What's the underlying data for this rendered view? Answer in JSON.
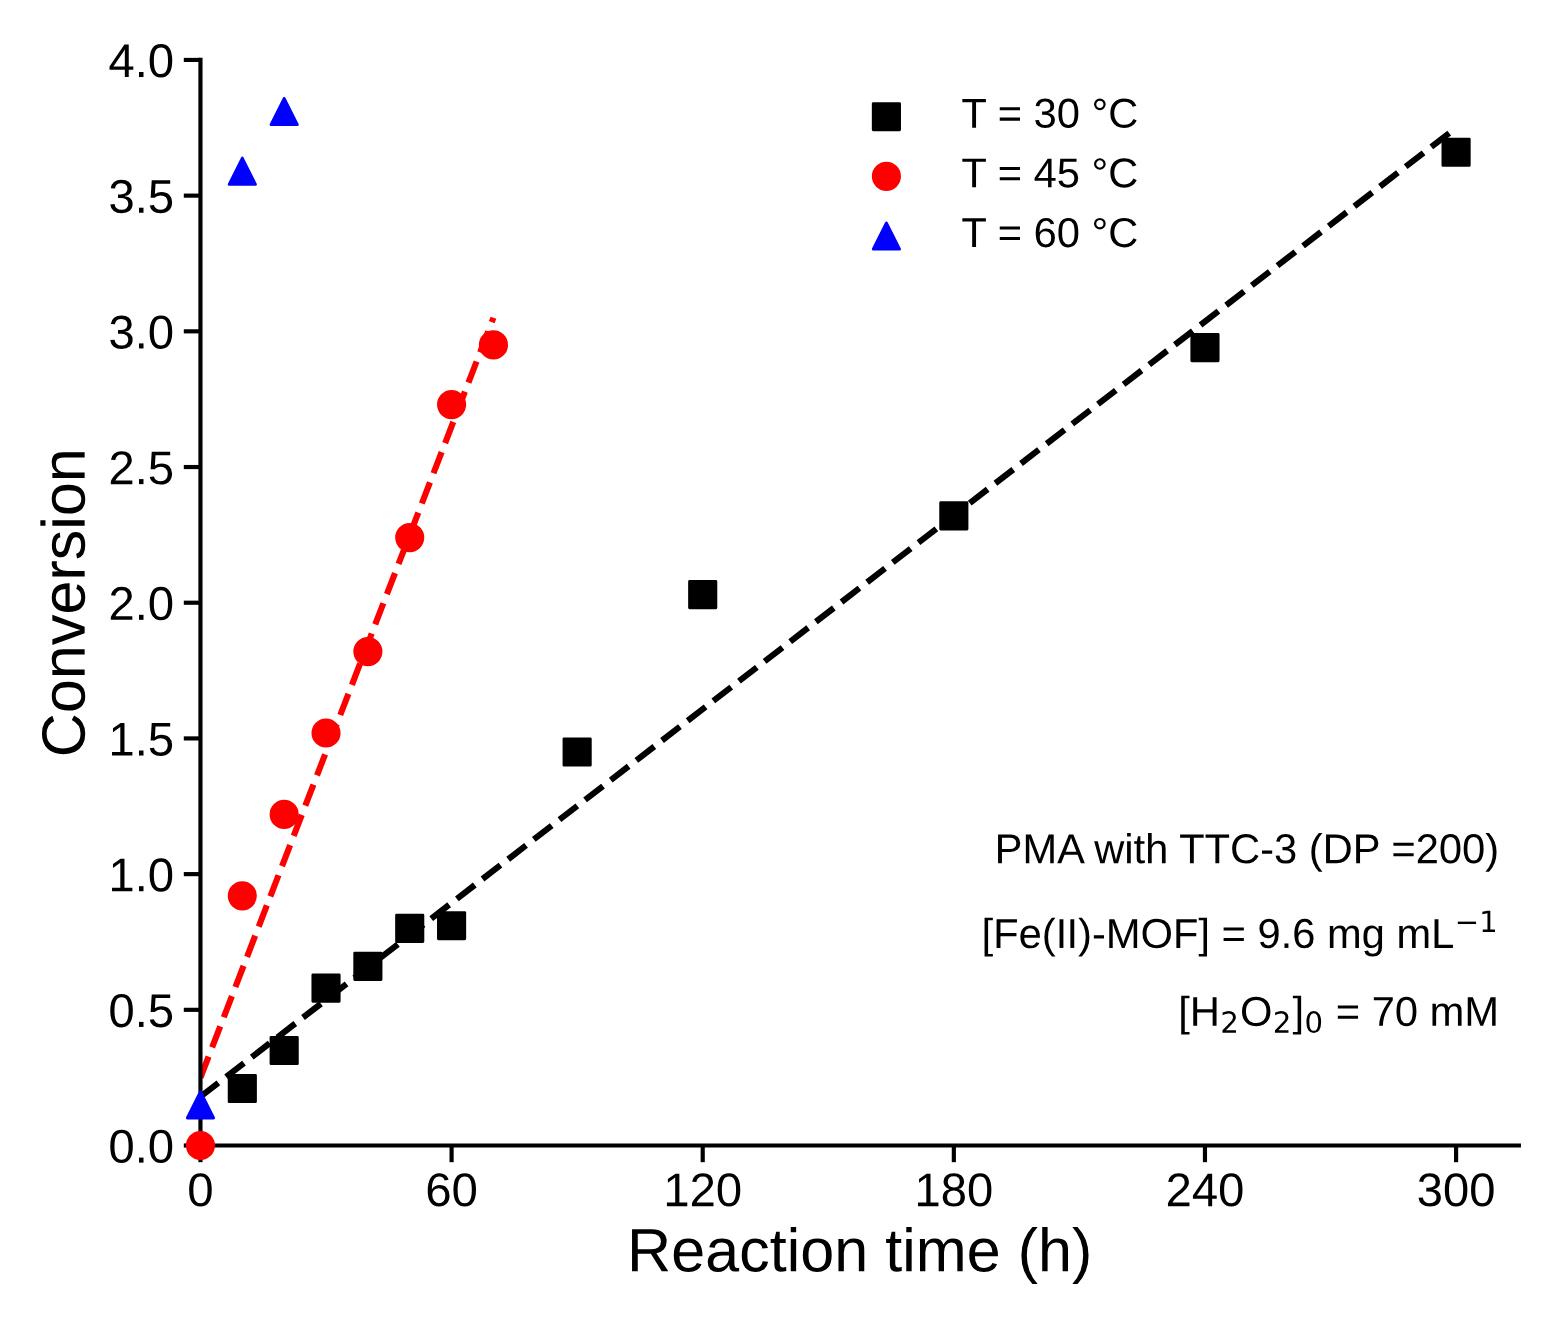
{
  "chart_data": {
    "type": "scatter",
    "xlabel": "Reaction time (h)",
    "ylabel": "Conversion",
    "xlim": [
      0,
      315
    ],
    "xticks": [
      0,
      60,
      120,
      180,
      240,
      300
    ],
    "ylim": [
      0,
      4.0
    ],
    "yticks": [
      {
        "value": 0,
        "label": "0.0"
      },
      0.5,
      {
        "value": 1,
        "label": "1.0"
      },
      1.5,
      {
        "value": 2,
        "label": "2.0"
      },
      2.5,
      {
        "value": 3,
        "label": "3.0"
      },
      3.5,
      {
        "value": 4,
        "label": "4.0"
      }
    ],
    "grid": false,
    "legend": "top",
    "series": [
      {
        "name": "T = 30 °C",
        "color": "#000000",
        "marker": "square",
        "x": [
          10,
          20,
          30,
          40,
          50,
          60,
          90,
          120,
          180,
          240,
          300
        ],
        "values": [
          0.21,
          0.35,
          0.58,
          0.66,
          0.8,
          0.81,
          1.45,
          2.03,
          2.32,
          2.94,
          3.66
        ]
      },
      {
        "name": "T = 45 °C",
        "color": "#ff0000",
        "marker": "circle",
        "x": [
          0,
          10,
          20,
          30,
          40,
          50,
          60,
          70
        ],
        "values": [
          0,
          0.92,
          1.22,
          1.52,
          1.82,
          2.24,
          2.73,
          2.95
        ]
      },
      {
        "name": "T = 60 °C",
        "color": "#0000ff",
        "marker": "triangle",
        "x": [
          0,
          10,
          20
        ],
        "values": [
          0.15,
          3.59,
          3.81
        ]
      },
      {
        "type": "line",
        "color": "#000000",
        "line_style": "dashed",
        "x": [
          0,
          300
        ],
        "values": [
          0.18,
          3.75
        ]
      },
      {
        "type": "line",
        "color": "#ff0000",
        "line_style": "dashed",
        "x": [
          0,
          70
        ],
        "values": [
          0.25,
          3.05
        ]
      }
    ],
    "annotations": [
      "PMA with TTC-3 (DP =200)",
      "[Fe(II)-MOF] = 9.6 mg mL$^{−1}$",
      "[H$_{2}$O$_{2}$]$_{0}$ = 70 mM"
    ]
  }
}
